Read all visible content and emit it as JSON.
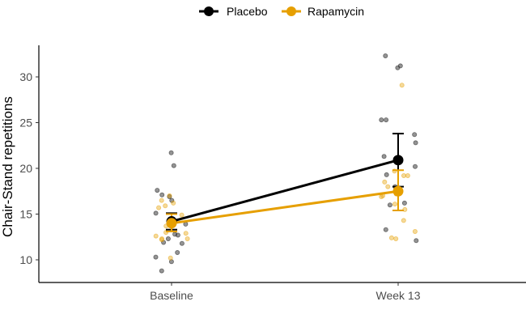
{
  "chart_data": {
    "type": "line",
    "title": "",
    "xlabel": "",
    "ylabel": "Chair-Stand repetitions",
    "categories": [
      "Baseline",
      "Week 13"
    ],
    "ylim": [
      7.5,
      33.5
    ],
    "yticks": [
      10,
      15,
      20,
      25,
      30
    ],
    "grid": false,
    "legend": {
      "position": "top",
      "entries": [
        "Placebo",
        "Rapamycin"
      ]
    },
    "series": [
      {
        "name": "Placebo",
        "color": "#000000",
        "means": [
          14.2,
          20.9
        ],
        "error_low": [
          13.3,
          18.0
        ],
        "error_high": [
          15.1,
          23.8
        ],
        "points": {
          "Baseline": [
            21.7,
            20.3,
            17.6,
            17.1,
            16.9,
            16.5,
            15.1,
            13.9,
            12.8,
            12.3,
            11.9,
            11.8,
            10.8,
            10.3,
            9.8,
            8.8,
            12.7
          ],
          "Week 13": [
            32.3,
            31.2,
            31.0,
            25.3,
            25.3,
            23.7,
            22.8,
            21.3,
            21.0,
            20.2,
            19.3,
            18.0,
            17.7,
            16.2,
            16.0,
            13.3,
            12.1
          ]
        }
      },
      {
        "name": "Rapamycin",
        "color": "#E69F00",
        "means": [
          14.0,
          17.5
        ],
        "error_low": [
          13.1,
          15.4
        ],
        "error_high": [
          15.0,
          19.8
        ],
        "points": {
          "Baseline": [
            17.0,
            16.5,
            16.2,
            15.9,
            15.7,
            14.9,
            13.7,
            13.0,
            12.6,
            12.3,
            12.3,
            12.9,
            10.2,
            12.2
          ],
          "Week 13": [
            29.1,
            19.7,
            19.2,
            19.2,
            18.5,
            18.0,
            17.2,
            17.0,
            16.9,
            16.1,
            15.5,
            14.3,
            13.1,
            12.4,
            12.3
          ]
        }
      }
    ]
  }
}
